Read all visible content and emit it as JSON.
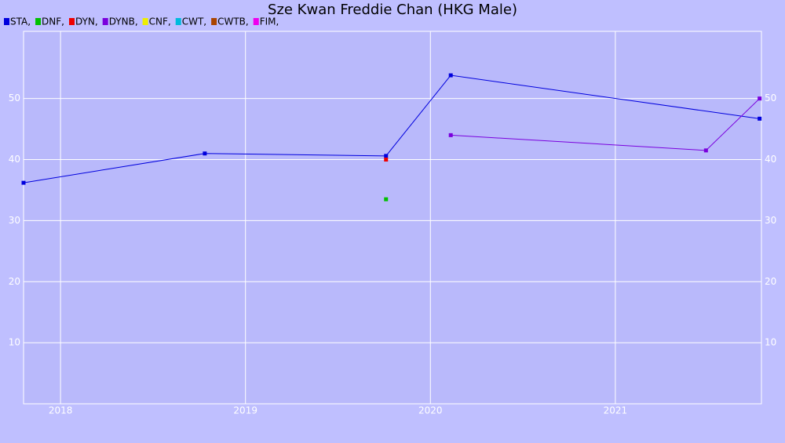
{
  "chart_data": {
    "type": "line",
    "title": "Sze Kwan Freddie Chan (HKG Male)",
    "series": [
      {
        "name": "STA,",
        "color": "#0000dd",
        "x": [
          2017.8,
          2018.78,
          2019.76,
          2020.11,
          2021.78
        ],
        "values": [
          36.2,
          41.0,
          40.6,
          53.8,
          46.7
        ]
      },
      {
        "name": "DNF,",
        "color": "#00c000",
        "x": [
          2019.76
        ],
        "values": [
          33.5
        ]
      },
      {
        "name": "DYN,",
        "color": "#ee0000",
        "x": [
          2019.76
        ],
        "values": [
          40.0
        ]
      },
      {
        "name": "DYNB,",
        "color": "#7a00dd",
        "x": [
          2020.11,
          2021.49,
          2021.78
        ],
        "values": [
          44.0,
          41.5,
          50.0
        ]
      },
      {
        "name": "CNF,",
        "color": "#eeee00",
        "x": [],
        "values": []
      },
      {
        "name": "CWT,",
        "color": "#00bbdd",
        "x": [],
        "values": []
      },
      {
        "name": "CWTB,",
        "color": "#aa4400",
        "x": [],
        "values": []
      },
      {
        "name": "FIM,",
        "color": "#ee00ee",
        "x": [],
        "values": []
      }
    ],
    "xlim": [
      2017.8,
      2021.79
    ],
    "xticks": [
      2018,
      2019,
      2020,
      2021
    ],
    "ylim": [
      0,
      61
    ],
    "yticks": [
      10,
      20,
      30,
      40,
      50
    ],
    "grid": true
  }
}
